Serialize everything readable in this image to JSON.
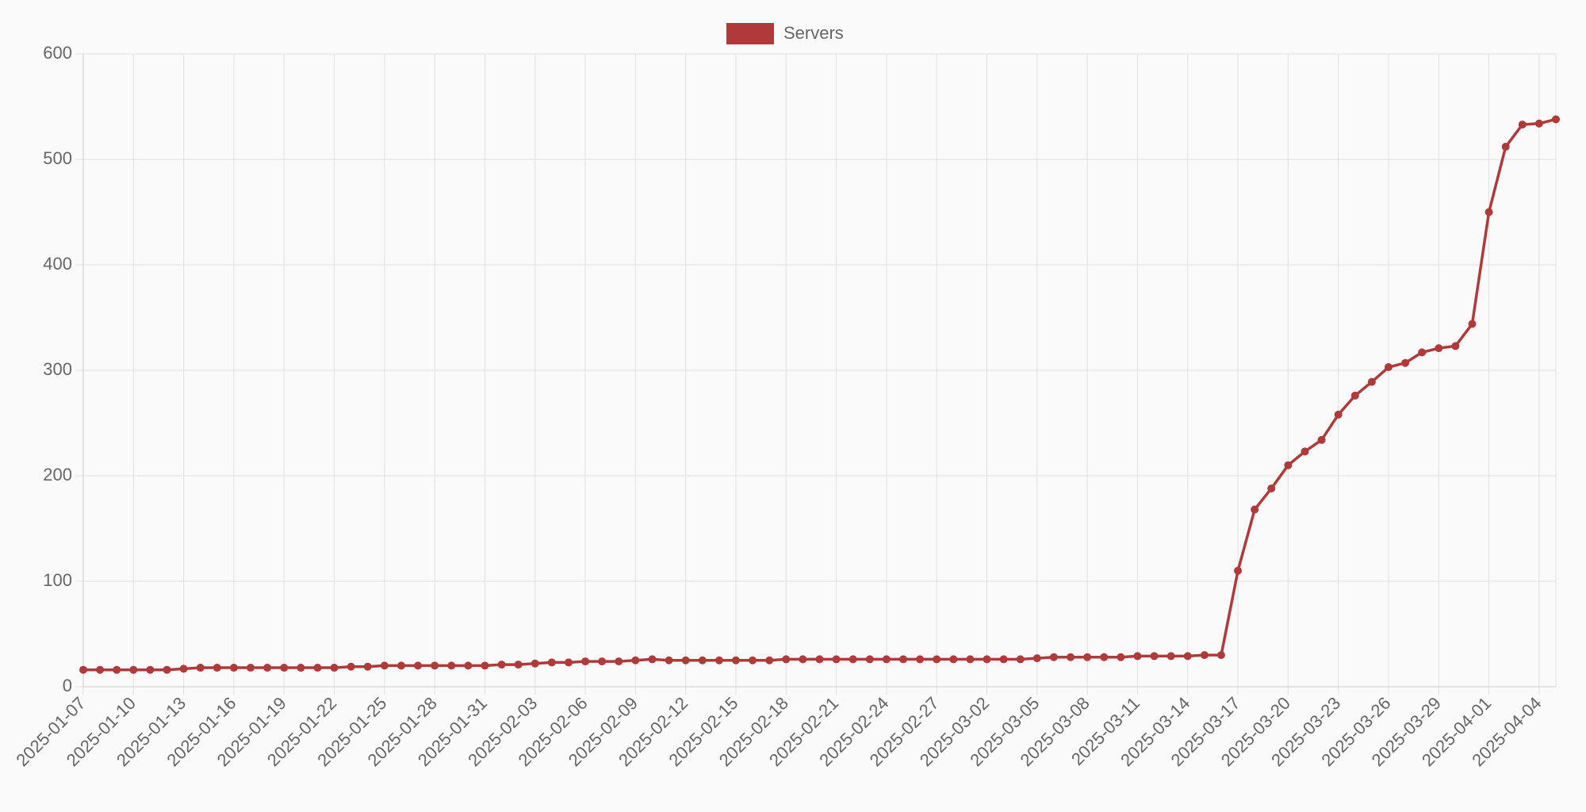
{
  "chart_data": {
    "type": "line",
    "categories": [
      "2025-01-07",
      null,
      null,
      "2025-01-10",
      null,
      null,
      "2025-01-13",
      null,
      null,
      "2025-01-16",
      null,
      null,
      "2025-01-19",
      null,
      null,
      "2025-01-22",
      null,
      null,
      "2025-01-25",
      null,
      null,
      "2025-01-28",
      null,
      null,
      "2025-01-31",
      null,
      null,
      "2025-02-03",
      null,
      null,
      "2025-02-06",
      null,
      null,
      "2025-02-09",
      null,
      null,
      "2025-02-12",
      null,
      null,
      "2025-02-15",
      null,
      null,
      "2025-02-18",
      null,
      null,
      "2025-02-21",
      null,
      null,
      "2025-02-24",
      null,
      null,
      "2025-02-27",
      null,
      null,
      "2025-03-02",
      null,
      null,
      "2025-03-05",
      null,
      null,
      "2025-03-08",
      null,
      null,
      "2025-03-11",
      null,
      null,
      "2025-03-14",
      null,
      null,
      "2025-03-17",
      null,
      null,
      "2025-03-20",
      null,
      null,
      "2025-03-23",
      null,
      null,
      "2025-03-26",
      null,
      null,
      "2025-03-29",
      null,
      null,
      "2025-04-01",
      null,
      null,
      "2025-04-04",
      null
    ],
    "series": [
      {
        "name": "Servers",
        "color": "#b03a3a",
        "values": [
          16,
          16,
          16,
          16,
          16,
          16,
          17,
          18,
          18,
          18,
          18,
          18,
          18,
          18,
          18,
          18,
          19,
          19,
          20,
          20,
          20,
          20,
          20,
          20,
          20,
          21,
          21,
          22,
          23,
          23,
          24,
          24,
          24,
          25,
          26,
          25,
          25,
          25,
          25,
          25,
          25,
          25,
          26,
          26,
          26,
          26,
          26,
          26,
          26,
          26,
          26,
          26,
          26,
          26,
          26,
          26,
          26,
          27,
          28,
          28,
          28,
          28,
          28,
          29,
          29,
          29,
          29,
          30,
          30,
          110,
          168,
          188,
          210,
          223,
          234,
          258,
          276,
          289,
          303,
          307,
          317,
          321,
          323,
          344,
          450,
          512,
          533,
          534,
          538
        ]
      }
    ],
    "ylim": [
      0,
      600
    ],
    "yticks": [
      0,
      100,
      200,
      300,
      400,
      500,
      600
    ],
    "grid": true,
    "legend": "top"
  }
}
